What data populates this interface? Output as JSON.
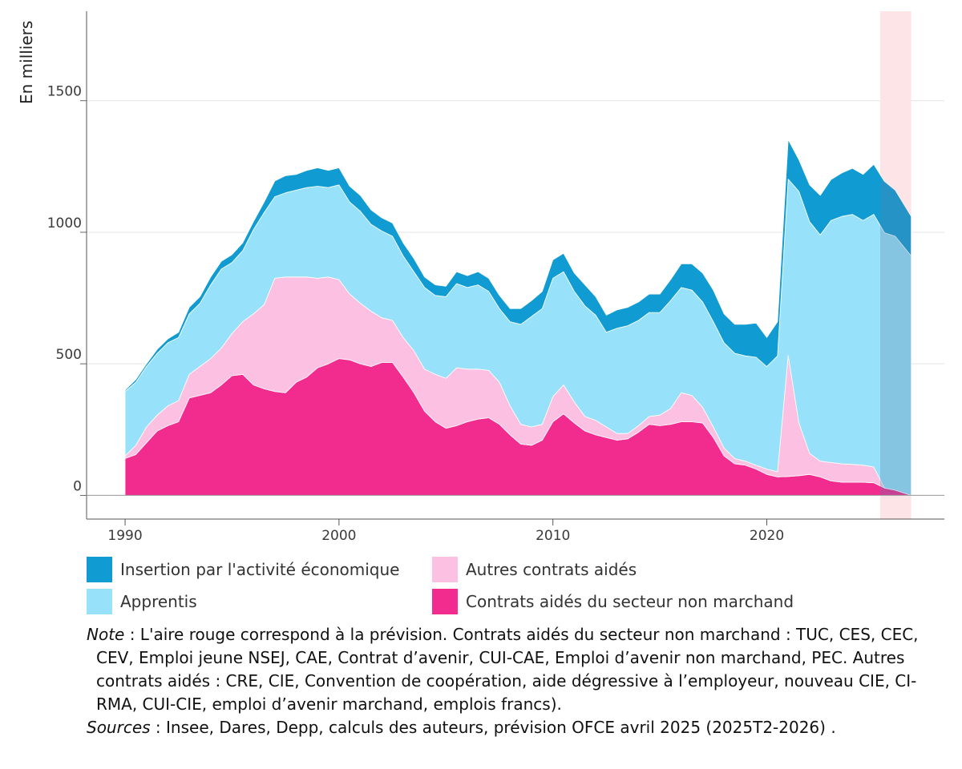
{
  "chart_data": {
    "type": "area",
    "stacked": true,
    "ylabel": "En milliers",
    "ylim": [
      -90,
      1840
    ],
    "xlim": [
      1988.2,
      2028.3
    ],
    "yticks": [
      0,
      500,
      1000,
      1500
    ],
    "xticks": [
      1990,
      2000,
      2010,
      2020
    ],
    "forecast_start": 2025.3,
    "forecast_end": 2026.75,
    "x": [
      1990,
      1990.5,
      1991,
      1991.5,
      1992,
      1992.5,
      1993,
      1993.5,
      1994,
      1994.5,
      1995,
      1995.5,
      1996,
      1996.5,
      1997,
      1997.5,
      1998,
      1998.5,
      1999,
      1999.5,
      2000,
      2000.5,
      2001,
      2001.5,
      2002,
      2002.5,
      2003,
      2003.5,
      2004,
      2004.5,
      2005,
      2005.5,
      2006,
      2006.5,
      2007,
      2007.5,
      2008,
      2008.5,
      2009,
      2009.5,
      2010,
      2010.5,
      2011,
      2011.5,
      2012,
      2012.5,
      2013,
      2013.5,
      2014,
      2014.5,
      2015,
      2015.5,
      2016,
      2016.5,
      2017,
      2017.5,
      2018,
      2018.5,
      2019,
      2019.5,
      2020,
      2020.5,
      2021,
      2021.5,
      2022,
      2022.5,
      2023,
      2023.5,
      2024,
      2024.5,
      2025,
      2025.5,
      2026,
      2026.75
    ],
    "series": [
      {
        "name": "Contrats aidés du secteur non marchand",
        "color": "#f22b8e",
        "values": [
          140,
          155,
          200,
          245,
          265,
          280,
          370,
          380,
          390,
          420,
          455,
          460,
          420,
          405,
          395,
          390,
          430,
          450,
          485,
          500,
          520,
          515,
          500,
          490,
          505,
          505,
          450,
          390,
          320,
          280,
          255,
          265,
          280,
          290,
          295,
          270,
          230,
          195,
          190,
          210,
          280,
          310,
          275,
          245,
          230,
          220,
          210,
          215,
          240,
          270,
          265,
          270,
          280,
          280,
          275,
          220,
          150,
          120,
          115,
          100,
          80,
          70,
          72,
          75,
          80,
          70,
          55,
          50,
          50,
          50,
          48,
          28,
          20,
          0
        ]
      },
      {
        "name": "Autres contrats aidés",
        "color": "#fcc1e2",
        "values": [
          10,
          35,
          60,
          60,
          75,
          80,
          90,
          110,
          130,
          140,
          160,
          200,
          270,
          320,
          430,
          440,
          400,
          380,
          340,
          330,
          300,
          250,
          230,
          210,
          170,
          160,
          150,
          160,
          160,
          180,
          190,
          220,
          200,
          190,
          180,
          160,
          110,
          75,
          70,
          60,
          95,
          110,
          80,
          55,
          55,
          40,
          25,
          20,
          25,
          30,
          40,
          60,
          110,
          100,
          60,
          40,
          30,
          20,
          15,
          15,
          20,
          20,
          460,
          200,
          80,
          60,
          70,
          70,
          68,
          65,
          60,
          0,
          0,
          0
        ]
      },
      {
        "name": "Apprentis",
        "color": "#97e1fb",
        "values": [
          245,
          240,
          230,
          235,
          240,
          240,
          230,
          240,
          280,
          300,
          270,
          270,
          320,
          350,
          310,
          320,
          330,
          340,
          350,
          340,
          360,
          350,
          350,
          330,
          330,
          320,
          310,
          300,
          310,
          300,
          310,
          320,
          310,
          320,
          300,
          280,
          320,
          380,
          420,
          440,
          450,
          430,
          420,
          420,
          400,
          360,
          400,
          410,
          400,
          395,
          390,
          410,
          400,
          400,
          400,
          400,
          400,
          400,
          400,
          410,
          390,
          440,
          670,
          880,
          880,
          860,
          920,
          940,
          950,
          930,
          960,
          970,
          965,
          910
        ]
      },
      {
        "name": "Insertion par l'activité économique",
        "color": "#119bd3",
        "values": [
          5,
          10,
          10,
          15,
          15,
          20,
          25,
          25,
          30,
          30,
          30,
          30,
          30,
          40,
          60,
          65,
          60,
          65,
          70,
          65,
          65,
          60,
          60,
          55,
          50,
          50,
          50,
          50,
          40,
          40,
          40,
          45,
          45,
          50,
          50,
          50,
          50,
          60,
          60,
          65,
          70,
          70,
          70,
          80,
          70,
          65,
          70,
          70,
          70,
          70,
          70,
          80,
          90,
          100,
          110,
          120,
          110,
          110,
          120,
          130,
          110,
          130,
          150,
          120,
          140,
          150,
          155,
          165,
          175,
          175,
          190,
          195,
          175,
          150
        ]
      }
    ]
  },
  "legend": {
    "iae": "Insertion par l'activité économique",
    "apprentis": "Apprentis",
    "autres": "Autres contrats aidés",
    "non_marchand": "Contrats aidés du secteur non marchand"
  },
  "notes": {
    "note_label": "Note",
    "note_text": " : L'aire rouge correspond à la prévision. Contrats aidés du secteur non marchand : TUC, CES, CEC, CEV, Emploi jeune NSEJ, CAE, Contrat d’avenir, CUI-CAE, Emploi d’avenir non marchand, PEC. Autres contrats aidés : CRE, CIE, Convention de coopération, aide dégressive à l’employeur, nouveau CIE, CI-RMA, CUI-CIE, emploi d’avenir marchand, emplois francs).",
    "sources_label": "Sources",
    "sources_text": " : Insee, Dares, Depp, calculs des auteurs, prévision OFCE avril 2025 (2025T2-2026) ."
  }
}
